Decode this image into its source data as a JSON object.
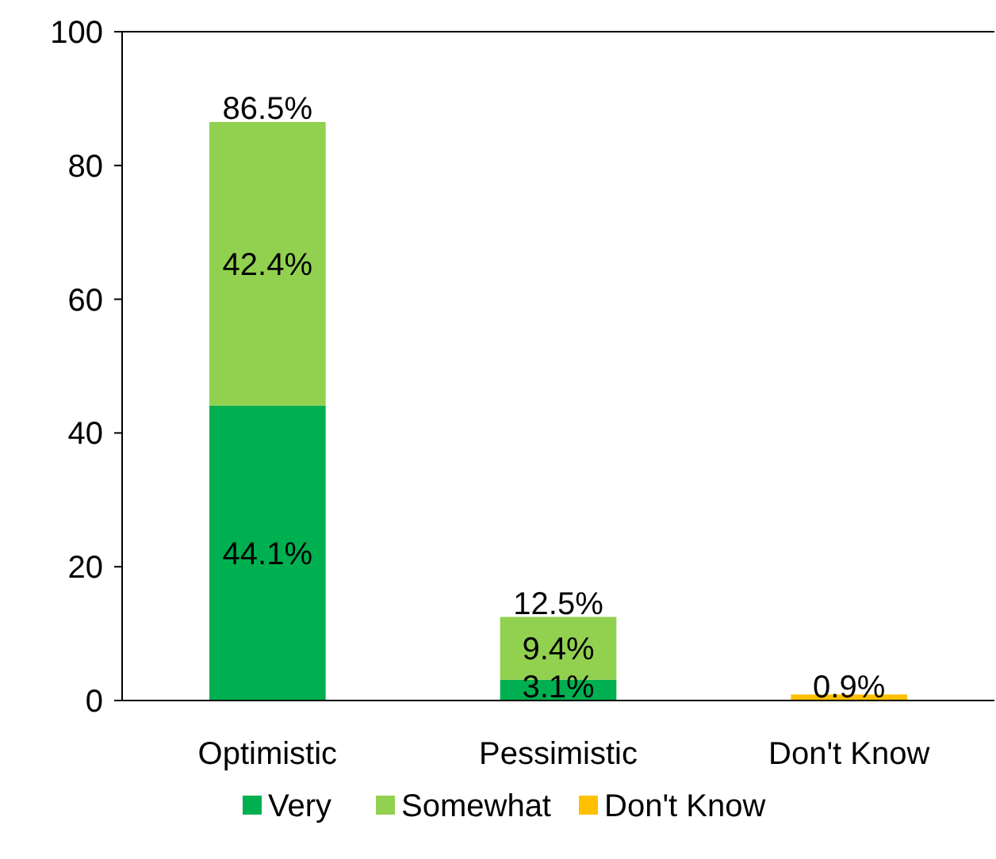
{
  "chart_data": {
    "type": "bar",
    "stacked": true,
    "categories": [
      "Optimistic",
      "Pessimistic",
      "Don't Know"
    ],
    "series": [
      {
        "name": "Very",
        "color": "#00b050",
        "values": [
          44.1,
          3.1,
          null
        ],
        "value_labels": [
          "44.1%",
          "3.1%",
          null
        ]
      },
      {
        "name": "Somewhat",
        "color": "#92d050",
        "values": [
          42.4,
          9.4,
          null
        ],
        "value_labels": [
          "42.4%",
          "9.4%",
          null
        ]
      },
      {
        "name": "Don't Know",
        "color": "#ffc000",
        "values": [
          null,
          null,
          0.9
        ],
        "value_labels": [
          null,
          null,
          "0.9%"
        ]
      }
    ],
    "totals": [
      "86.5%",
      "12.5%",
      null
    ],
    "ylim": [
      0,
      100
    ],
    "yticks": [
      0,
      20,
      40,
      60,
      80,
      100
    ],
    "grid": false,
    "legend": "bottom"
  }
}
